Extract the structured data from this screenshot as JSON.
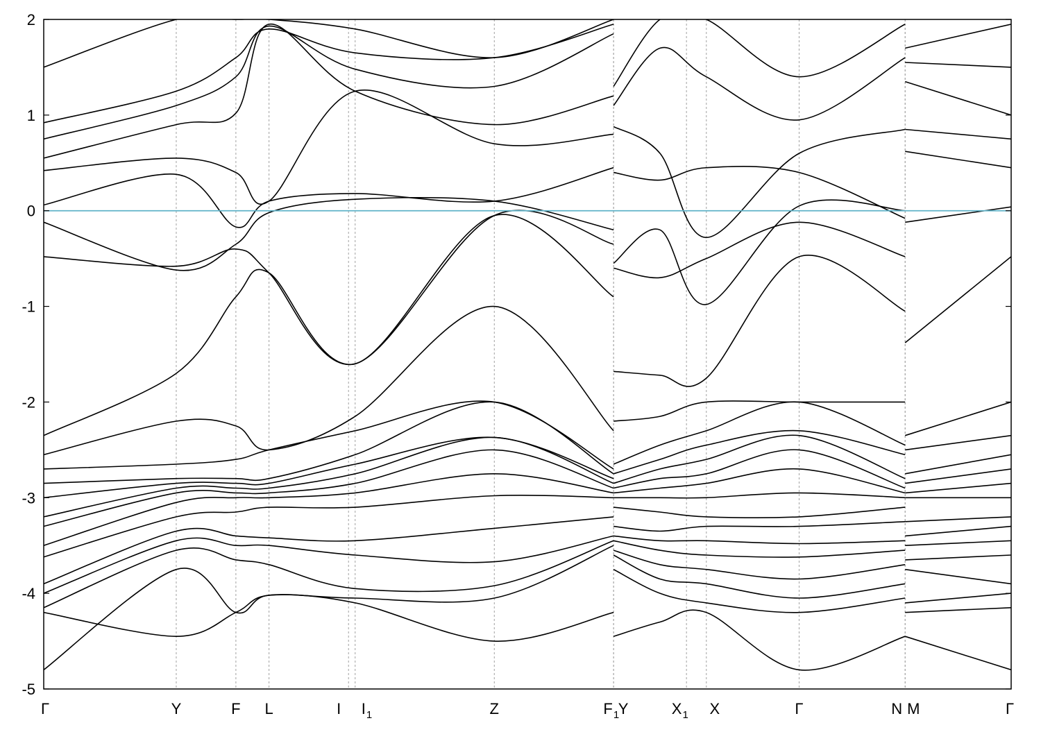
{
  "chart_data": {
    "type": "line",
    "title": "",
    "xlabel": "",
    "ylabel": "",
    "ylim": [
      -5,
      2
    ],
    "yticks": [
      "2",
      "1",
      "0",
      "-1",
      "-2",
      "-3",
      "-4",
      "-5"
    ],
    "grid": "vertical dashed lines at high-symmetry points",
    "legend": "none",
    "colors": {
      "bands": "#000000",
      "fermi_level": "#5fb2c8",
      "grid": "#a0a0a0"
    },
    "high_symmetry_points": [
      {
        "label": "Γ",
        "sub": ""
      },
      {
        "label": "Y",
        "sub": ""
      },
      {
        "label": "F",
        "sub": ""
      },
      {
        "label": "L",
        "sub": ""
      },
      {
        "label": "I",
        "sub": ""
      },
      {
        "label": "I",
        "sub": "1"
      },
      {
        "label": "Z",
        "sub": ""
      },
      {
        "label": "F",
        "sub": "1"
      },
      {
        "label": "Y",
        "sub": ""
      },
      {
        "label": "X",
        "sub": "1"
      },
      {
        "label": "X",
        "sub": ""
      },
      {
        "label": "Γ",
        "sub": ""
      },
      {
        "label": "N",
        "sub": ""
      },
      {
        "label": "M",
        "sub": ""
      },
      {
        "label": "Γ",
        "sub": ""
      }
    ],
    "fermi_level": 0,
    "segments": [
      {
        "path": "Γ-Y-F-L-I|I1-Z-F1",
        "x": [
          0,
          1.0,
          1.45,
          1.7,
          2.35,
          3.4,
          4.3
        ],
        "series": [
          {
            "values": [
              -4.8,
              -3.75,
              -4.2,
              -4.02,
              -4.1,
              -4.5,
              -4.2
            ]
          },
          {
            "values": [
              -4.2,
              -4.45,
              -4.2,
              -4.02,
              -4.05,
              -4.05,
              -3.5
            ]
          },
          {
            "values": [
              -4.15,
              -3.55,
              -3.65,
              -3.7,
              -3.95,
              -3.92,
              -3.45
            ]
          },
          {
            "values": [
              -4.0,
              -3.45,
              -3.5,
              -3.5,
              -3.6,
              -3.67,
              -3.4
            ]
          },
          {
            "values": [
              -3.9,
              -3.35,
              -3.4,
              -3.42,
              -3.45,
              -3.32,
              -3.2
            ]
          },
          {
            "values": [
              -3.62,
              -3.2,
              -3.15,
              -3.1,
              -3.1,
              -2.98,
              -3.0
            ]
          },
          {
            "values": [
              -3.5,
              -3.05,
              -3.0,
              -3.0,
              -2.95,
              -2.75,
              -2.95
            ]
          },
          {
            "values": [
              -3.3,
              -2.95,
              -2.95,
              -2.95,
              -2.85,
              -2.5,
              -2.9
            ]
          },
          {
            "values": [
              -3.2,
              -2.9,
              -2.9,
              -2.9,
              -2.75,
              -2.37,
              -2.85
            ]
          },
          {
            "values": [
              -3.0,
              -2.85,
              -2.85,
              -2.85,
              -2.65,
              -2.37,
              -2.8
            ]
          },
          {
            "values": [
              -2.85,
              -2.8,
              -2.8,
              -2.8,
              -2.55,
              -2.0,
              -2.75
            ]
          },
          {
            "values": [
              -2.7,
              -2.65,
              -2.6,
              -2.5,
              -2.3,
              -2.0,
              -2.7
            ]
          },
          {
            "values": [
              -2.55,
              -2.2,
              -2.25,
              -2.5,
              -2.15,
              -1.0,
              -2.3
            ]
          },
          {
            "values": [
              -2.35,
              -1.7,
              -0.9,
              -0.65,
              -1.6,
              -0.05,
              -0.9
            ]
          },
          {
            "values": [
              -0.48,
              -0.58,
              -0.4,
              -0.65,
              -1.6,
              -0.05,
              -0.35
            ]
          },
          {
            "values": [
              -0.12,
              -0.62,
              -0.35,
              -0.02,
              0.12,
              0.1,
              -0.2
            ]
          },
          {
            "values": [
              0.06,
              0.38,
              -0.17,
              0.1,
              0.18,
              0.1,
              0.45
            ]
          },
          {
            "values": [
              0.42,
              0.55,
              0.4,
              0.1,
              1.25,
              0.7,
              0.8
            ]
          },
          {
            "values": [
              0.55,
              0.9,
              1.02,
              1.95,
              1.25,
              0.9,
              1.2
            ]
          },
          {
            "values": [
              0.75,
              1.1,
              1.4,
              1.93,
              1.48,
              1.3,
              1.85
            ]
          },
          {
            "values": [
              0.92,
              1.25,
              1.6,
              1.9,
              1.65,
              1.6,
              1.95
            ]
          },
          {
            "values": [
              1.5,
              2.0,
              2.0,
              2.0,
              1.9,
              1.6,
              2.0
            ]
          }
        ]
      },
      {
        "path": "Y-X1|X-Γ-N",
        "x": [
          4.3,
          4.65,
          5.0,
          5.7,
          6.5
        ],
        "series": [
          {
            "values": [
              -4.45,
              -4.3,
              -4.2,
              -4.8,
              -4.45
            ]
          },
          {
            "values": [
              -3.75,
              -4.0,
              -4.1,
              -4.2,
              -4.05
            ]
          },
          {
            "values": [
              -3.6,
              -3.85,
              -3.9,
              -4.05,
              -3.9
            ]
          },
          {
            "values": [
              -3.55,
              -3.7,
              -3.75,
              -3.85,
              -3.7
            ]
          },
          {
            "values": [
              -3.45,
              -3.55,
              -3.6,
              -3.62,
              -3.55
            ]
          },
          {
            "values": [
              -3.4,
              -3.45,
              -3.45,
              -3.48,
              -3.45
            ]
          },
          {
            "values": [
              -3.3,
              -3.35,
              -3.3,
              -3.3,
              -3.25
            ]
          },
          {
            "values": [
              -3.1,
              -3.15,
              -3.2,
              -3.2,
              -3.1
            ]
          },
          {
            "values": [
              -3.0,
              -3.0,
              -3.0,
              -2.95,
              -3.0
            ]
          },
          {
            "values": [
              -2.95,
              -2.9,
              -2.85,
              -2.7,
              -2.95
            ]
          },
          {
            "values": [
              -2.9,
              -2.8,
              -2.75,
              -2.5,
              -2.9
            ]
          },
          {
            "values": [
              -2.85,
              -2.7,
              -2.6,
              -2.35,
              -2.8
            ]
          },
          {
            "values": [
              -2.75,
              -2.6,
              -2.45,
              -2.3,
              -2.55
            ]
          },
          {
            "values": [
              -2.65,
              -2.45,
              -2.3,
              -2.0,
              -2.45
            ]
          },
          {
            "values": [
              -2.2,
              -2.15,
              -2.0,
              -2.0,
              -2.0
            ]
          },
          {
            "values": [
              -1.68,
              -1.72,
              -1.75,
              -0.48,
              -1.05
            ]
          },
          {
            "values": [
              -0.6,
              -0.7,
              -0.5,
              -0.12,
              -0.48
            ]
          },
          {
            "values": [
              -0.55,
              -0.2,
              -0.98,
              0.05,
              0.0
            ]
          },
          {
            "values": [
              0.4,
              0.32,
              0.45,
              0.4,
              -0.08
            ]
          },
          {
            "values": [
              0.88,
              0.6,
              -0.28,
              0.6,
              0.85
            ]
          },
          {
            "values": [
              1.1,
              1.7,
              1.4,
              0.95,
              1.6
            ]
          },
          {
            "values": [
              1.3,
              2.0,
              2.0,
              1.4,
              1.95
            ]
          }
        ]
      },
      {
        "path": "M-Γ",
        "x": [
          6.5,
          7.3
        ],
        "series": [
          {
            "values": [
              -4.45,
              -4.8
            ]
          },
          {
            "values": [
              -4.2,
              -4.15
            ]
          },
          {
            "values": [
              -4.1,
              -4.0
            ]
          },
          {
            "values": [
              -3.75,
              -3.9
            ]
          },
          {
            "values": [
              -3.65,
              -3.6
            ]
          },
          {
            "values": [
              -3.5,
              -3.45
            ]
          },
          {
            "values": [
              -3.4,
              -3.3
            ]
          },
          {
            "values": [
              -3.25,
              -3.2
            ]
          },
          {
            "values": [
              -3.0,
              -3.0
            ]
          },
          {
            "values": [
              -2.95,
              -2.85
            ]
          },
          {
            "values": [
              -2.85,
              -2.7
            ]
          },
          {
            "values": [
              -2.75,
              -2.55
            ]
          },
          {
            "values": [
              -2.5,
              -2.35
            ]
          },
          {
            "values": [
              -2.35,
              -2.0
            ]
          },
          {
            "values": [
              -1.38,
              -0.48
            ]
          },
          {
            "values": [
              -0.12,
              0.04
            ]
          },
          {
            "values": [
              0.62,
              0.45
            ]
          },
          {
            "values": [
              0.85,
              0.75
            ]
          },
          {
            "values": [
              1.35,
              1.0
            ]
          },
          {
            "values": [
              1.55,
              1.5
            ]
          },
          {
            "values": [
              1.7,
              1.95
            ]
          }
        ]
      }
    ],
    "x_positions": [
      0,
      1.0,
      1.45,
      1.7,
      2.3,
      2.35,
      3.4,
      4.3,
      4.3,
      4.85,
      5.0,
      5.7,
      6.5,
      6.5,
      7.3
    ],
    "x_range": [
      0,
      7.3
    ]
  }
}
